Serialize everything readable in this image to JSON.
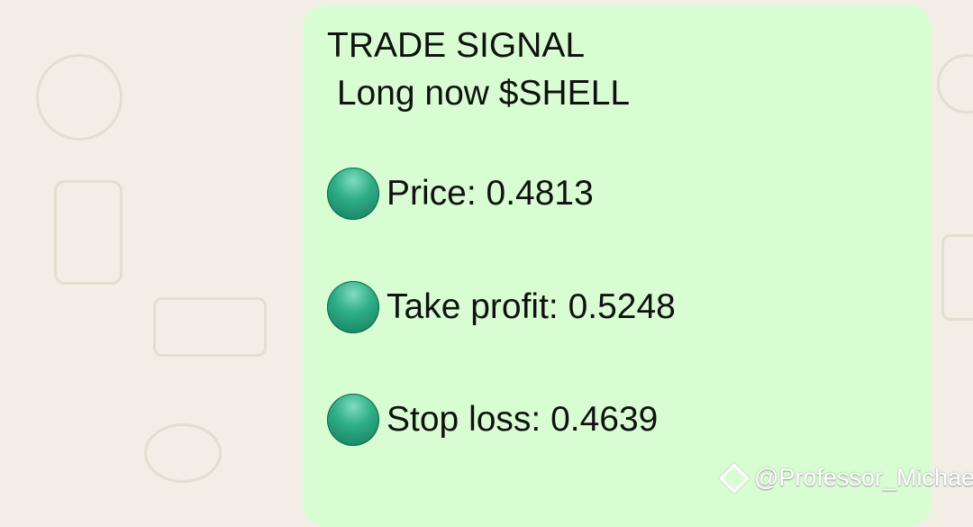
{
  "message": {
    "title": "TRADE SIGNAL",
    "subtitle": " Long now $SHELL",
    "items": [
      {
        "icon": "green-circle-icon",
        "text": "Price: 0.4813"
      },
      {
        "icon": "green-circle-icon",
        "text": "Take profit: 0.5248"
      },
      {
        "icon": "green-circle-icon",
        "text": "Stop loss: 0.4639"
      }
    ],
    "bubble_color": "#d9fdd3"
  },
  "watermark": {
    "text": "@Professor_Michael"
  }
}
